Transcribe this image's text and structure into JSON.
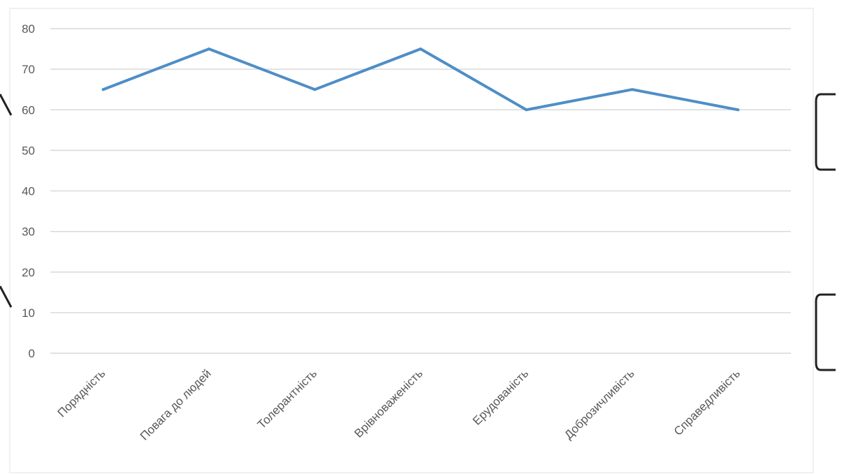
{
  "chart_data": {
    "type": "line",
    "categories": [
      "Порядність",
      "Повага до людей",
      "Толерантність",
      "Врівноваженість",
      "Ерудованість",
      "Доброзичливість",
      "Справедливість"
    ],
    "series": [
      {
        "values": [
          65,
          75,
          65,
          75,
          60,
          65,
          60
        ]
      }
    ],
    "ylim": [
      0,
      80
    ],
    "yticks": [
      0,
      10,
      20,
      30,
      40,
      50,
      60,
      70,
      80
    ],
    "grid": true,
    "legend": "none"
  },
  "colors": {
    "series": "#4e8ec7",
    "grid": "#d9d9d9",
    "text": "#595959"
  }
}
